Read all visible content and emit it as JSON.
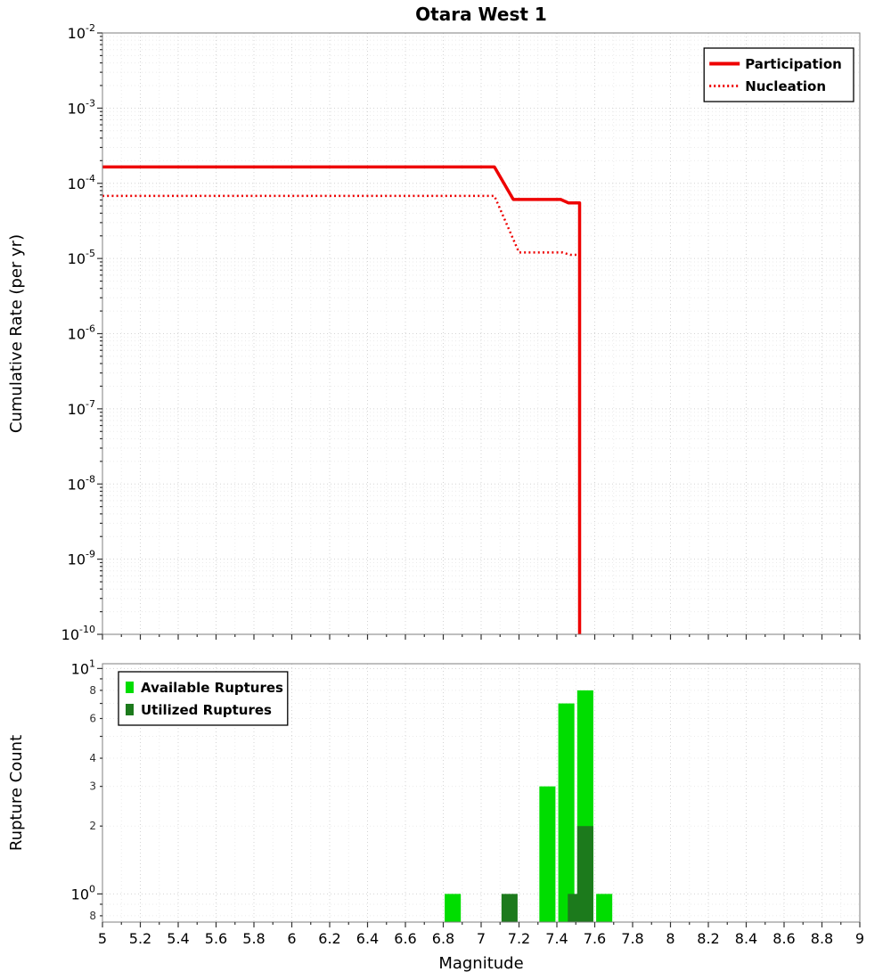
{
  "figure": {
    "title": "Otara West 1",
    "background": "#ffffff"
  },
  "chart_data": [
    {
      "id": "cumulative-rate",
      "type": "line",
      "title": "Otara West 1",
      "xlabel": "",
      "ylabel": "Cumulative Rate (per yr)",
      "xscale": "linear",
      "yscale": "log",
      "xlim": [
        5,
        9
      ],
      "ylim": [
        1e-10,
        0.01
      ],
      "grid": true,
      "y_tick_exponents": [
        -2,
        -3,
        -4,
        -5,
        -6,
        -7,
        -8,
        -9,
        -10
      ],
      "x_tick_values": [
        5,
        5.2,
        5.4,
        5.6,
        5.8,
        6,
        6.2,
        6.4,
        6.6,
        6.8,
        7,
        7.2,
        7.4,
        7.6,
        7.8,
        8,
        8.2,
        8.4,
        8.6,
        8.8,
        9
      ],
      "legend": {
        "position": "top-right",
        "items": [
          {
            "label": "Participation",
            "swatch": "line-solid",
            "color": "#ee0000"
          },
          {
            "label": "Nucleation",
            "swatch": "line-dotted",
            "color": "#ee0000"
          }
        ]
      },
      "series": [
        {
          "name": "Participation",
          "color": "#ee0000",
          "line_style": "solid",
          "line_width": 3.5,
          "points": [
            [
              5,
              0.000165
            ],
            [
              7.07,
              0.000165
            ],
            [
              7.17,
              6.1e-05
            ],
            [
              7.42,
              6.1e-05
            ],
            [
              7.46,
              5.5e-05
            ],
            [
              7.52,
              5.5e-05
            ],
            [
              7.52,
              1e-10
            ]
          ]
        },
        {
          "name": "Nucleation",
          "color": "#ee0000",
          "line_style": "dotted",
          "line_width": 2.5,
          "points": [
            [
              5,
              6.8e-05
            ],
            [
              7.07,
              6.8e-05
            ],
            [
              7.2,
              1.2e-05
            ],
            [
              7.43,
              1.2e-05
            ],
            [
              7.47,
              1.12e-05
            ],
            [
              7.52,
              1.12e-05
            ],
            [
              7.52,
              1e-10
            ]
          ]
        }
      ]
    },
    {
      "id": "rupture-count",
      "type": "bar",
      "title": "",
      "xlabel": "Magnitude",
      "ylabel": "Rupture Count",
      "xscale": "linear",
      "yscale": "log",
      "xlim": [
        5,
        9
      ],
      "ylim": [
        0.75,
        10.5
      ],
      "grid": true,
      "y_tick_exponents": [
        1,
        0
      ],
      "y_minor_tick_labels": [
        {
          "value": 8,
          "label": "8"
        },
        {
          "value": 6,
          "label": "6"
        },
        {
          "value": 4,
          "label": "4"
        },
        {
          "value": 3,
          "label": "3"
        },
        {
          "value": 2,
          "label": "2"
        },
        {
          "value": 0.8,
          "label": "8"
        }
      ],
      "x_tick_values": [
        5,
        5.2,
        5.4,
        5.6,
        5.8,
        6,
        6.2,
        6.4,
        6.6,
        6.8,
        7,
        7.2,
        7.4,
        7.6,
        7.8,
        8,
        8.2,
        8.4,
        8.6,
        8.8,
        9
      ],
      "x_tick_labels": [
        "5",
        "5.2",
        "5.4",
        "5.6",
        "5.8",
        "6",
        "6.2",
        "6.4",
        "6.6",
        "6.8",
        "7",
        "7.2",
        "7.4",
        "7.6",
        "7.8",
        "8",
        "8.2",
        "8.4",
        "8.6",
        "8.8",
        "9"
      ],
      "legend": {
        "position": "top-left",
        "items": [
          {
            "label": "Available Ruptures",
            "swatch": "rect",
            "color": "#00dd00"
          },
          {
            "label": "Utilized Ruptures",
            "swatch": "rect",
            "color": "#1c7a1c"
          }
        ]
      },
      "series": [
        {
          "name": "Available Ruptures",
          "color": "#00dd00",
          "bar_width": 0.085,
          "bars": [
            {
              "x": 6.85,
              "count": 1
            },
            {
              "x": 7.35,
              "count": 3
            },
            {
              "x": 7.45,
              "count": 7
            },
            {
              "x": 7.55,
              "count": 8
            },
            {
              "x": 7.65,
              "count": 1
            }
          ]
        },
        {
          "name": "Utilized Ruptures",
          "color": "#1c7a1c",
          "bar_width": 0.085,
          "bars": [
            {
              "x": 7.15,
              "count": 1
            },
            {
              "x": 7.5,
              "count": 1
            },
            {
              "x": 7.55,
              "count": 2
            }
          ]
        }
      ]
    }
  ]
}
